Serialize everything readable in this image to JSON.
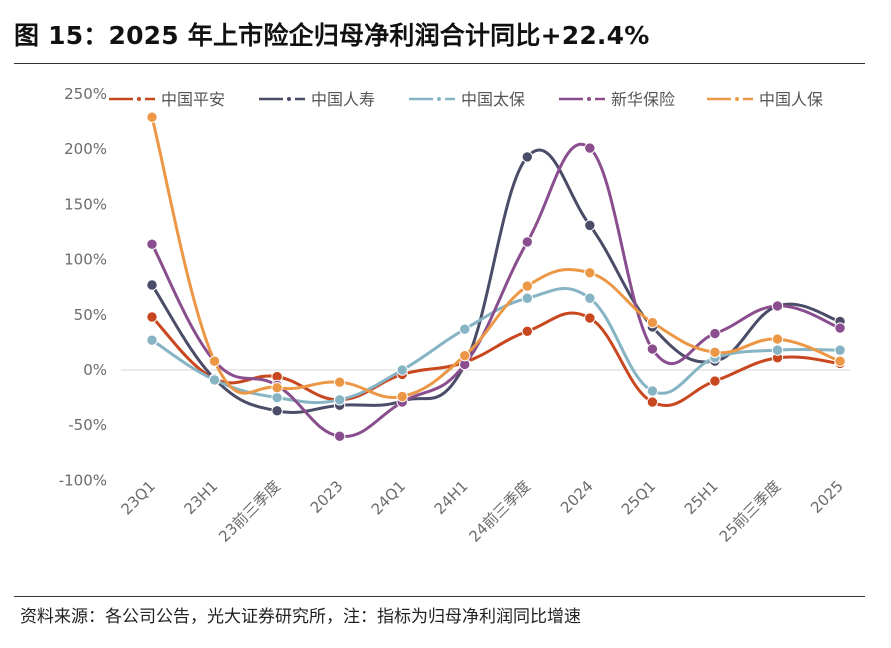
{
  "title": "图 15：2025 年上市险企归母净利润合计同比+22.4%",
  "source": "资料来源：各公司公告，光大证券研究所，注：指标为归母净利润同比增速",
  "chart_data": {
    "type": "line",
    "title": "图 15：2025 年上市险企归母净利润合计同比+22.4%",
    "xlabel": "",
    "ylabel": "",
    "categories": [
      "23Q1",
      "23H1",
      "23前三季度",
      "2023",
      "24Q1",
      "24H1",
      "24前三季度",
      "2024",
      "25Q1",
      "25H1",
      "25前三季度",
      "2025"
    ],
    "y_ticks": [
      250,
      200,
      150,
      100,
      50,
      0,
      -50,
      -100
    ],
    "y_tick_labels": [
      "250%",
      "200%",
      "150%",
      "100%",
      "50%",
      "0%",
      "-50%",
      "-100%"
    ],
    "ylim": [
      -100,
      250
    ],
    "grid": false,
    "legend_position": "top",
    "series": [
      {
        "name": "中国平安",
        "color": "#c8471f",
        "values": [
          48,
          -8,
          -6,
          -27,
          -4,
          7,
          35,
          47,
          -29,
          -10,
          11,
          6
        ]
      },
      {
        "name": "中国人寿",
        "color": "#4a4c68",
        "values": [
          77,
          -8,
          -37,
          -32,
          -28,
          5,
          193,
          131,
          39,
          8,
          58,
          44
        ]
      },
      {
        "name": "中国太保",
        "color": "#86b4c4",
        "values": [
          27,
          -9,
          -25,
          -27,
          0,
          37,
          65,
          65,
          -19,
          11,
          18,
          18
        ]
      },
      {
        "name": "新华保险",
        "color": "#8a4e8e",
        "values": [
          114,
          8,
          -14,
          -60,
          -29,
          5,
          116,
          201,
          19,
          33,
          58,
          38
        ]
      },
      {
        "name": "中国人保",
        "color": "#eb9745",
        "values": [
          229,
          8,
          -16,
          -11,
          -24,
          13,
          76,
          88,
          43,
          16,
          28,
          8
        ]
      }
    ]
  }
}
